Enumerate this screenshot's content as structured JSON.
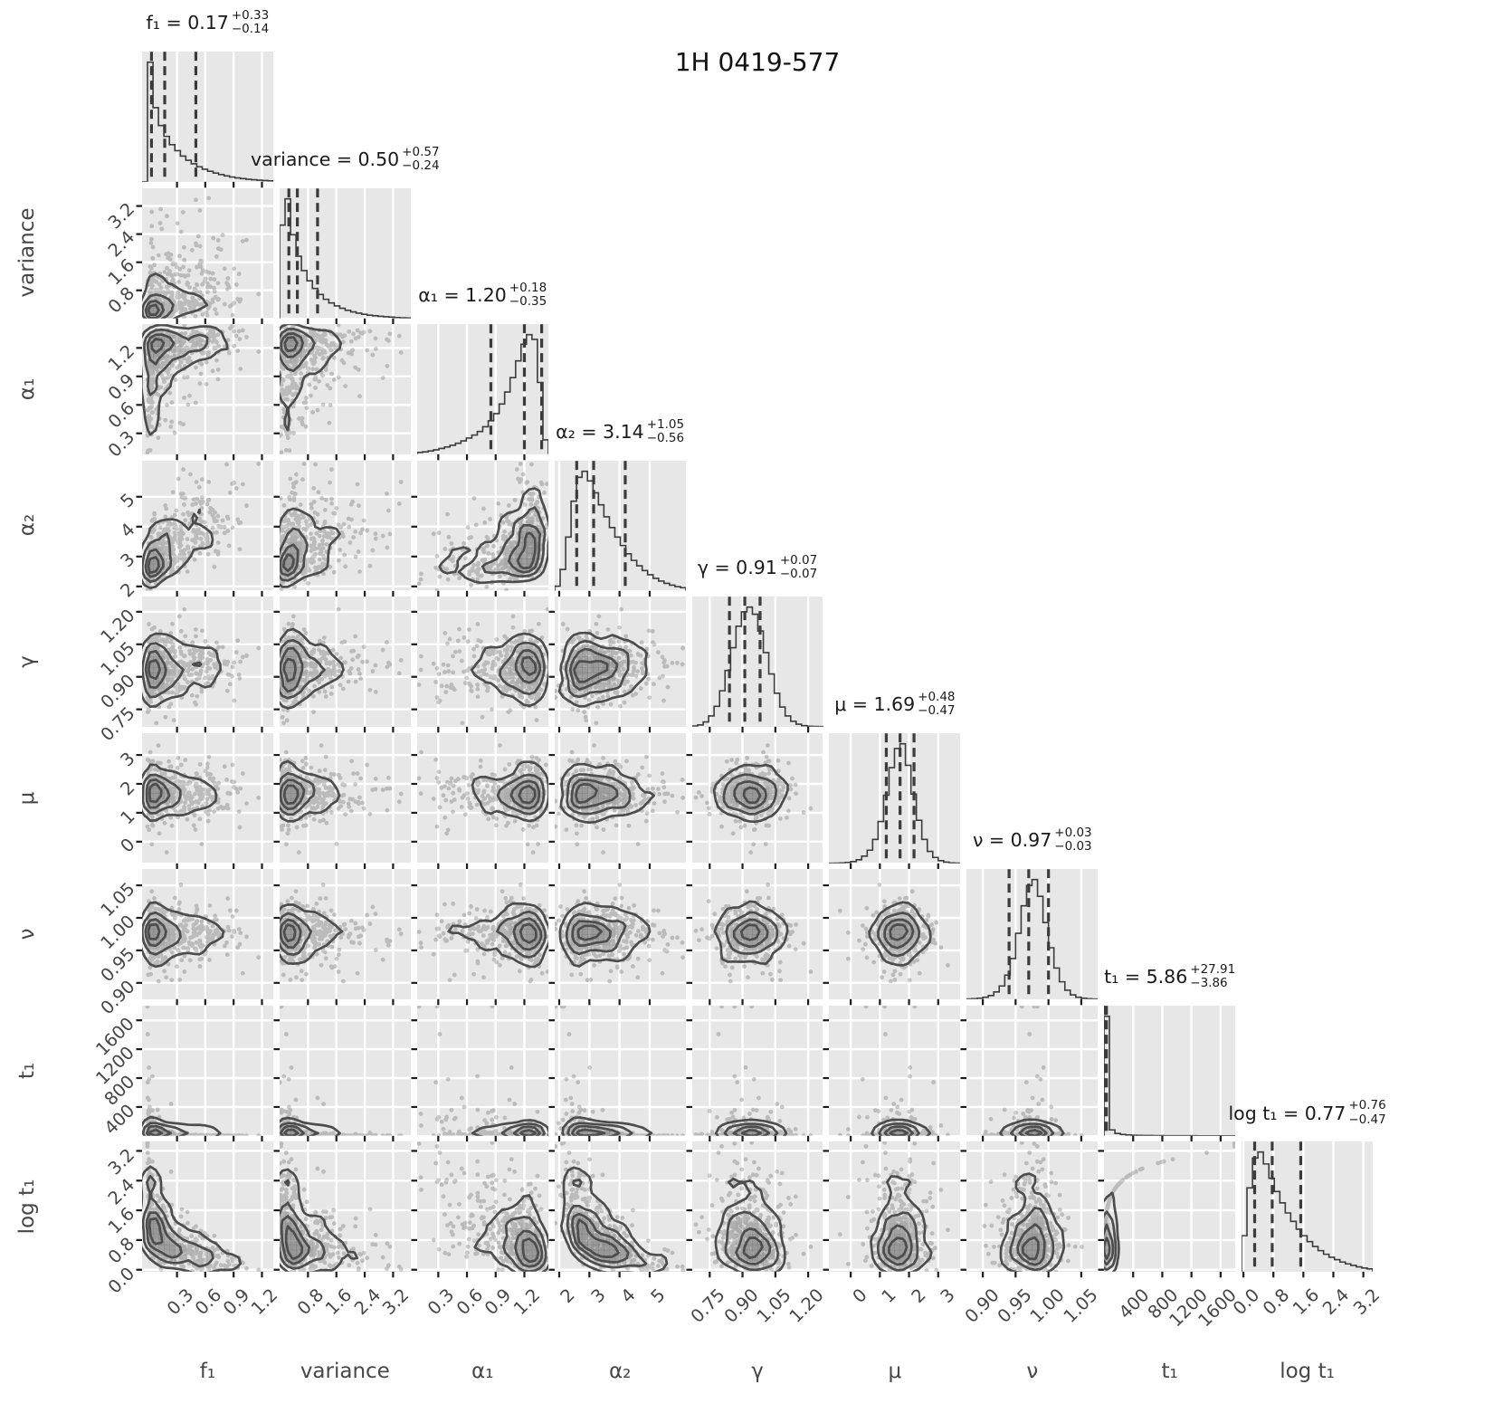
{
  "title": "1H 0419-577",
  "chart_data": {
    "type": "corner_plot",
    "title": "1H 0419-577",
    "description": "Posterior corner plot: diagonal = 1-D marginal histograms with 16/50/84 percentile dashed lines; lower triangle = 2-D scatter with density contours.",
    "parameters": [
      {
        "key": "f1",
        "label": "f₁",
        "estimate": "0.17",
        "plus": "+0.33",
        "minus": "−0.14",
        "range": [
          -0.07,
          1.32
        ],
        "tick_values": [
          0.3,
          0.6,
          0.9,
          1.2
        ],
        "tick_labels": [
          "0.3",
          "0.6",
          "0.9",
          "1.2"
        ],
        "quantiles": [
          0.03,
          0.17,
          0.5
        ],
        "hist": [
          0,
          1.0,
          0.62,
          0.47,
          0.38,
          0.31,
          0.26,
          0.215,
          0.18,
          0.15,
          0.125,
          0.105,
          0.088,
          0.073,
          0.06,
          0.049,
          0.04,
          0.032,
          0.026,
          0.021,
          0.017,
          0.013,
          0.01,
          0.008
        ]
      },
      {
        "key": "variance",
        "label": "variance",
        "estimate": "0.50",
        "plus": "+0.57",
        "minus": "−0.24",
        "range": [
          0.0,
          3.7
        ],
        "tick_values": [
          0.8,
          1.6,
          2.4,
          3.2
        ],
        "tick_labels": [
          "0.8",
          "1.6",
          "2.4",
          "3.2"
        ],
        "quantiles": [
          0.26,
          0.5,
          1.07
        ],
        "hist": [
          0.78,
          1.0,
          0.7,
          0.52,
          0.4,
          0.315,
          0.25,
          0.2,
          0.16,
          0.13,
          0.105,
          0.085,
          0.068,
          0.055,
          0.044,
          0.035,
          0.028,
          0.022,
          0.018,
          0.014,
          0.011,
          0.008,
          0.006,
          0.004
        ]
      },
      {
        "key": "alpha1",
        "label": "α₁",
        "estimate": "1.20",
        "plus": "+0.18",
        "minus": "−0.35",
        "range": [
          0.08,
          1.45
        ],
        "tick_values": [
          0.3,
          0.6,
          0.9,
          1.2
        ],
        "tick_labels": [
          "0.3",
          "0.6",
          "0.9",
          "1.2"
        ],
        "quantiles": [
          0.85,
          1.2,
          1.38
        ],
        "hist": [
          0.015,
          0.02,
          0.028,
          0.037,
          0.048,
          0.06,
          0.075,
          0.092,
          0.112,
          0.135,
          0.16,
          0.19,
          0.23,
          0.28,
          0.34,
          0.42,
          0.52,
          0.64,
          0.78,
          0.92,
          1.0,
          0.96,
          0.6,
          0.12
        ]
      },
      {
        "key": "alpha2",
        "label": "α₂",
        "estimate": "3.14",
        "plus": "+1.05",
        "minus": "−0.56",
        "range": [
          1.85,
          6.2
        ],
        "tick_values": [
          2,
          3,
          4,
          5
        ],
        "tick_labels": [
          "2",
          "3",
          "4",
          "5"
        ],
        "quantiles": [
          2.58,
          3.14,
          4.19
        ],
        "hist": [
          0.04,
          0.18,
          0.45,
          0.75,
          0.95,
          1.0,
          0.92,
          0.82,
          0.72,
          0.62,
          0.53,
          0.45,
          0.38,
          0.31,
          0.255,
          0.21,
          0.17,
          0.135,
          0.105,
          0.082,
          0.063,
          0.048,
          0.036,
          0.027
        ]
      },
      {
        "key": "gamma",
        "label": "γ",
        "estimate": "0.91",
        "plus": "+0.07",
        "minus": "−0.07",
        "range": [
          0.67,
          1.27
        ],
        "tick_values": [
          0.75,
          0.9,
          1.05,
          1.2
        ],
        "tick_labels": [
          "0.75",
          "0.90",
          "1.05",
          "1.20"
        ],
        "quantiles": [
          0.84,
          0.91,
          0.98
        ],
        "hist": [
          0.006,
          0.015,
          0.04,
          0.09,
          0.17,
          0.3,
          0.47,
          0.66,
          0.84,
          0.96,
          1.0,
          0.94,
          0.8,
          0.62,
          0.44,
          0.28,
          0.165,
          0.09,
          0.045,
          0.021,
          0.009,
          0.004,
          0.002,
          0.001
        ]
      },
      {
        "key": "mu",
        "label": "μ",
        "estimate": "1.69",
        "plus": "+0.48",
        "minus": "−0.47",
        "range": [
          -0.75,
          3.75
        ],
        "tick_values": [
          0,
          1,
          2,
          3
        ],
        "tick_labels": [
          "0",
          "1",
          "2",
          "3"
        ],
        "quantiles": [
          1.22,
          1.69,
          2.17
        ],
        "hist": [
          0.001,
          0.002,
          0.004,
          0.008,
          0.015,
          0.03,
          0.06,
          0.11,
          0.2,
          0.35,
          0.57,
          0.8,
          0.96,
          1.0,
          0.82,
          0.58,
          0.36,
          0.2,
          0.1,
          0.05,
          0.022,
          0.01,
          0.004,
          0.002
        ]
      },
      {
        "key": "nu",
        "label": "ν",
        "estimate": "0.97",
        "plus": "+0.03",
        "minus": "−0.03",
        "range": [
          0.875,
          1.075
        ],
        "tick_values": [
          0.9,
          0.95,
          1.0,
          1.05
        ],
        "tick_labels": [
          "0.90",
          "0.95",
          "1.00",
          "1.05"
        ],
        "quantiles": [
          0.94,
          0.97,
          1.0
        ],
        "hist": [
          0.002,
          0.004,
          0.008,
          0.016,
          0.03,
          0.06,
          0.11,
          0.2,
          0.34,
          0.55,
          0.78,
          0.95,
          1.0,
          0.86,
          0.64,
          0.43,
          0.26,
          0.145,
          0.075,
          0.036,
          0.016,
          0.007,
          0.003,
          0.001
        ]
      },
      {
        "key": "t1",
        "label": "t₁",
        "estimate": "5.86",
        "plus": "+27.91",
        "minus": "−3.86",
        "range": [
          0,
          1800
        ],
        "tick_values": [
          400,
          800,
          1200,
          1600
        ],
        "tick_labels": [
          "400",
          "800",
          "1200",
          "1600"
        ],
        "quantiles": [
          2.0,
          5.86,
          33.8
        ],
        "hist": [
          1.0,
          0.05,
          0.02,
          0.011,
          0.007,
          0.005,
          0.004,
          0.003,
          0.0025,
          0.002,
          0.0018,
          0.0015,
          0.0013,
          0.0011,
          0.001,
          0.0009,
          0.0008,
          0.0007,
          0.0006,
          0.0005,
          0.0005,
          0.0004,
          0.0004,
          0.0003
        ]
      },
      {
        "key": "logt1",
        "label": "log t₁",
        "estimate": "0.77",
        "plus": "+0.76",
        "minus": "−0.47",
        "range": [
          -0.05,
          3.45
        ],
        "tick_values": [
          0.0,
          0.8,
          1.6,
          2.4,
          3.2
        ],
        "tick_labels": [
          "0.0",
          "0.8",
          "1.6",
          "2.4",
          "3.2"
        ],
        "quantiles": [
          0.3,
          0.77,
          1.53
        ],
        "hist": [
          0.3,
          0.7,
          0.95,
          1.0,
          0.9,
          0.78,
          0.67,
          0.575,
          0.49,
          0.42,
          0.355,
          0.3,
          0.25,
          0.21,
          0.175,
          0.145,
          0.12,
          0.1,
          0.08,
          0.065,
          0.052,
          0.04,
          0.03,
          0.022
        ]
      }
    ],
    "style": {
      "panel_bg": "#e7e7e7",
      "gridline": "#ffffff",
      "hist_line": "#3b3b3b",
      "quantile_dash": "#3b3b3b",
      "contour": "#4d4d4d",
      "scatter": "#464646",
      "shade": "#696969",
      "tick": "#1c1c1c",
      "label_text": "#474747",
      "title_text": "#111111"
    }
  }
}
